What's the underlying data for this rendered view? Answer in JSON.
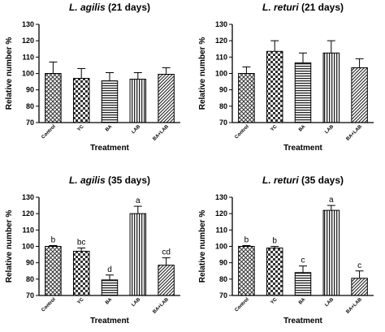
{
  "chart_data": [
    {
      "type": "bar",
      "title_italic": "L. agilis",
      "title_rest": "(21 days)",
      "xlabel": "Treatment",
      "ylabel": "Relative number %",
      "categories": [
        "Control",
        "YC",
        "BA",
        "LAB",
        "BA+LAB"
      ],
      "values": [
        100,
        97,
        95.5,
        96.5,
        99.5
      ],
      "errors": [
        7,
        6,
        5,
        4,
        4
      ],
      "letters": [],
      "ylim": [
        70,
        130
      ],
      "yticks": [
        70,
        80,
        90,
        100,
        110,
        120,
        130
      ],
      "patterns": [
        "crosshatch",
        "checker",
        "hlines",
        "vlines",
        "diagonal"
      ]
    },
    {
      "type": "bar",
      "title_italic": "L. returi",
      "title_rest": "(21 days)",
      "xlabel": "Treatment",
      "ylabel": "Relative number %",
      "categories": [
        "Control",
        "YC",
        "BA",
        "LAB",
        "BA+LAB"
      ],
      "values": [
        100,
        113.5,
        106.5,
        112.5,
        103.5
      ],
      "errors": [
        4,
        6.5,
        6,
        7.5,
        5.5
      ],
      "letters": [],
      "ylim": [
        70,
        130
      ],
      "yticks": [
        70,
        80,
        90,
        100,
        110,
        120,
        130
      ],
      "patterns": [
        "crosshatch",
        "checker",
        "hlines",
        "vlines",
        "diagonal"
      ]
    },
    {
      "type": "bar",
      "title_italic": "L. agilis",
      "title_rest": "(35 days)",
      "xlabel": "Treatment",
      "ylabel": "Relative number %",
      "categories": [
        "Control",
        "YC",
        "BA",
        "LAB",
        "BA+LAB"
      ],
      "values": [
        100,
        97,
        79.5,
        120,
        88.5
      ],
      "errors": [
        0.5,
        2,
        3,
        4.5,
        4.5
      ],
      "letters": [
        "b",
        "bc",
        "d",
        "a",
        "cd"
      ],
      "ylim": [
        70,
        130
      ],
      "yticks": [
        70,
        80,
        90,
        100,
        110,
        120,
        130
      ],
      "patterns": [
        "crosshatch",
        "checker",
        "hlines",
        "vlines",
        "diagonal"
      ]
    },
    {
      "type": "bar",
      "title_italic": "L. returi",
      "title_rest": "(35 days)",
      "xlabel": "Treatment",
      "ylabel": "Relative number %",
      "categories": [
        "Control",
        "YC",
        "BA",
        "LAB",
        "BA+LAB"
      ],
      "values": [
        100,
        99,
        84,
        122,
        80.5
      ],
      "errors": [
        0.5,
        1,
        4,
        3,
        4.5
      ],
      "letters": [
        "b",
        "b",
        "c",
        "a",
        "c"
      ],
      "ylim": [
        70,
        130
      ],
      "yticks": [
        70,
        80,
        90,
        100,
        110,
        120,
        130
      ],
      "patterns": [
        "crosshatch",
        "checker",
        "hlines",
        "vlines",
        "diagonal"
      ]
    }
  ]
}
